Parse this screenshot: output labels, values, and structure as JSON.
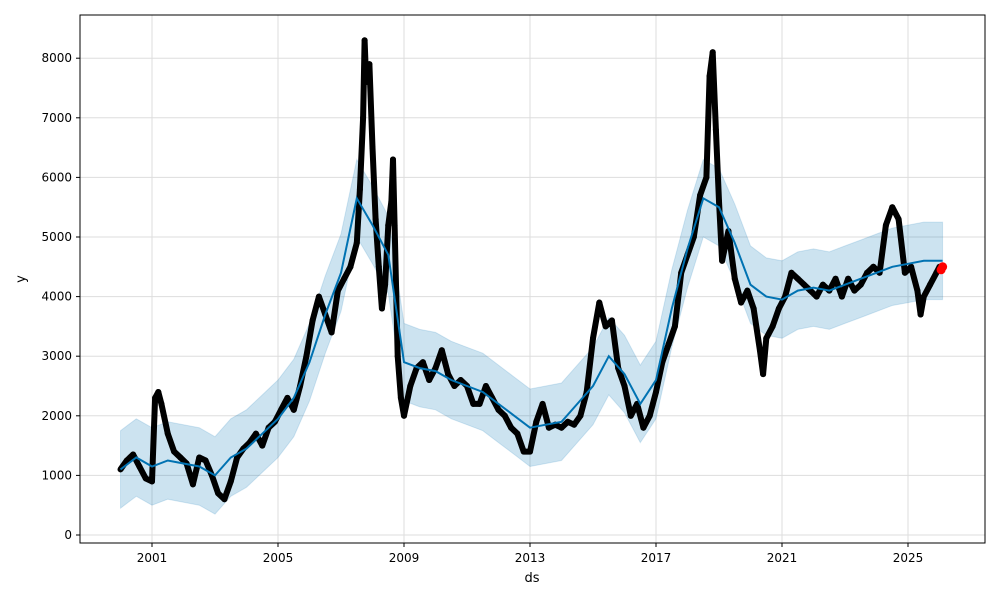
{
  "chart_data": {
    "type": "line",
    "title": "",
    "xlabel": "ds",
    "ylabel": "y",
    "xlim": [
      1998.1,
      2026.8
    ],
    "ylim": [
      -150,
      8700
    ],
    "grid": true,
    "x_ticks": [
      2001,
      2005,
      2009,
      2013,
      2017,
      2021,
      2025
    ],
    "y_ticks": [
      0,
      1000,
      2000,
      3000,
      4000,
      5000,
      6000,
      7000,
      8000
    ],
    "colors": {
      "forecast": "#0072B2",
      "band": "#0072B2",
      "observed": "#000000",
      "new_points": "#ff0000"
    },
    "forecast": [
      [
        2000.0,
        1100
      ],
      [
        2000.5,
        1300
      ],
      [
        2001,
        1150
      ],
      [
        2001.5,
        1250
      ],
      [
        2002,
        1200
      ],
      [
        2002.5,
        1150
      ],
      [
        2003,
        1000
      ],
      [
        2003.5,
        1300
      ],
      [
        2004,
        1450
      ],
      [
        2004.5,
        1700
      ],
      [
        2005,
        1950
      ],
      [
        2005.5,
        2300
      ],
      [
        2006,
        2900
      ],
      [
        2006.5,
        3700
      ],
      [
        2007,
        4400
      ],
      [
        2007.5,
        5650
      ],
      [
        2008,
        5200
      ],
      [
        2008.5,
        4700
      ],
      [
        2009,
        2900
      ],
      [
        2009.5,
        2800
      ],
      [
        2010,
        2750
      ],
      [
        2010.5,
        2600
      ],
      [
        2011,
        2500
      ],
      [
        2011.5,
        2400
      ],
      [
        2012,
        2200
      ],
      [
        2012.5,
        2000
      ],
      [
        2013,
        1800
      ],
      [
        2013.5,
        1850
      ],
      [
        2014,
        1900
      ],
      [
        2014.5,
        2200
      ],
      [
        2015,
        2500
      ],
      [
        2015.5,
        3000
      ],
      [
        2016,
        2700
      ],
      [
        2016.5,
        2200
      ],
      [
        2017,
        2600
      ],
      [
        2017.5,
        3800
      ],
      [
        2018,
        4800
      ],
      [
        2018.5,
        5650
      ],
      [
        2019,
        5500
      ],
      [
        2019.5,
        4900
      ],
      [
        2020,
        4200
      ],
      [
        2020.5,
        4000
      ],
      [
        2021,
        3950
      ],
      [
        2021.5,
        4100
      ],
      [
        2022,
        4150
      ],
      [
        2022.5,
        4100
      ],
      [
        2023,
        4200
      ],
      [
        2023.5,
        4300
      ],
      [
        2024,
        4400
      ],
      [
        2024.5,
        4500
      ],
      [
        2025,
        4550
      ],
      [
        2025.5,
        4600
      ],
      [
        2026.1,
        4600
      ]
    ],
    "band_halfwidth": 650,
    "observed": [
      [
        2000.0,
        1100
      ],
      [
        2000.2,
        1250
      ],
      [
        2000.4,
        1350
      ],
      [
        2000.6,
        1150
      ],
      [
        2000.8,
        950
      ],
      [
        2001.0,
        900
      ],
      [
        2001.1,
        2300
      ],
      [
        2001.2,
        2400
      ],
      [
        2001.3,
        2200
      ],
      [
        2001.5,
        1700
      ],
      [
        2001.7,
        1400
      ],
      [
        2001.9,
        1300
      ],
      [
        2002.1,
        1200
      ],
      [
        2002.3,
        850
      ],
      [
        2002.5,
        1300
      ],
      [
        2002.7,
        1250
      ],
      [
        2002.9,
        1000
      ],
      [
        2003.1,
        700
      ],
      [
        2003.3,
        600
      ],
      [
        2003.5,
        900
      ],
      [
        2003.7,
        1300
      ],
      [
        2003.9,
        1450
      ],
      [
        2004.1,
        1550
      ],
      [
        2004.3,
        1700
      ],
      [
        2004.5,
        1500
      ],
      [
        2004.7,
        1800
      ],
      [
        2004.9,
        1900
      ],
      [
        2005.1,
        2100
      ],
      [
        2005.3,
        2300
      ],
      [
        2005.5,
        2100
      ],
      [
        2005.7,
        2500
      ],
      [
        2005.9,
        3000
      ],
      [
        2006.1,
        3600
      ],
      [
        2006.3,
        4000
      ],
      [
        2006.5,
        3700
      ],
      [
        2006.7,
        3400
      ],
      [
        2006.9,
        4100
      ],
      [
        2007.1,
        4300
      ],
      [
        2007.3,
        4500
      ],
      [
        2007.5,
        4900
      ],
      [
        2007.6,
        5800
      ],
      [
        2007.7,
        7000
      ],
      [
        2007.75,
        8300
      ],
      [
        2007.8,
        7600
      ],
      [
        2007.9,
        7900
      ],
      [
        2008.0,
        6500
      ],
      [
        2008.1,
        5300
      ],
      [
        2008.2,
        4500
      ],
      [
        2008.3,
        3800
      ],
      [
        2008.4,
        4200
      ],
      [
        2008.5,
        5200
      ],
      [
        2008.6,
        5600
      ],
      [
        2008.65,
        6300
      ],
      [
        2008.7,
        5200
      ],
      [
        2008.8,
        3000
      ],
      [
        2008.9,
        2300
      ],
      [
        2009.0,
        2000
      ],
      [
        2009.2,
        2500
      ],
      [
        2009.4,
        2800
      ],
      [
        2009.6,
        2900
      ],
      [
        2009.8,
        2600
      ],
      [
        2010.0,
        2800
      ],
      [
        2010.2,
        3100
      ],
      [
        2010.4,
        2700
      ],
      [
        2010.6,
        2500
      ],
      [
        2010.8,
        2600
      ],
      [
        2011.0,
        2500
      ],
      [
        2011.2,
        2200
      ],
      [
        2011.4,
        2200
      ],
      [
        2011.6,
        2500
      ],
      [
        2011.8,
        2300
      ],
      [
        2012.0,
        2100
      ],
      [
        2012.2,
        2000
      ],
      [
        2012.4,
        1800
      ],
      [
        2012.6,
        1700
      ],
      [
        2012.8,
        1400
      ],
      [
        2013.0,
        1400
      ],
      [
        2013.2,
        1900
      ],
      [
        2013.4,
        2200
      ],
      [
        2013.6,
        1800
      ],
      [
        2013.8,
        1850
      ],
      [
        2014.0,
        1800
      ],
      [
        2014.2,
        1900
      ],
      [
        2014.4,
        1850
      ],
      [
        2014.6,
        2000
      ],
      [
        2014.8,
        2400
      ],
      [
        2015.0,
        3300
      ],
      [
        2015.2,
        3900
      ],
      [
        2015.4,
        3500
      ],
      [
        2015.6,
        3600
      ],
      [
        2015.8,
        2800
      ],
      [
        2016.0,
        2500
      ],
      [
        2016.2,
        2000
      ],
      [
        2016.4,
        2200
      ],
      [
        2016.6,
        1800
      ],
      [
        2016.8,
        2000
      ],
      [
        2017.0,
        2400
      ],
      [
        2017.2,
        2900
      ],
      [
        2017.4,
        3200
      ],
      [
        2017.6,
        3500
      ],
      [
        2017.8,
        4400
      ],
      [
        2018.0,
        4700
      ],
      [
        2018.2,
        5000
      ],
      [
        2018.4,
        5700
      ],
      [
        2018.6,
        6000
      ],
      [
        2018.7,
        7700
      ],
      [
        2018.8,
        8100
      ],
      [
        2018.9,
        6800
      ],
      [
        2019.0,
        5600
      ],
      [
        2019.1,
        4600
      ],
      [
        2019.3,
        5100
      ],
      [
        2019.5,
        4300
      ],
      [
        2019.7,
        3900
      ],
      [
        2019.9,
        4100
      ],
      [
        2020.1,
        3800
      ],
      [
        2020.3,
        3100
      ],
      [
        2020.4,
        2700
      ],
      [
        2020.5,
        3300
      ],
      [
        2020.7,
        3500
      ],
      [
        2020.9,
        3800
      ],
      [
        2021.1,
        4000
      ],
      [
        2021.3,
        4400
      ],
      [
        2021.5,
        4300
      ],
      [
        2021.7,
        4200
      ],
      [
        2021.9,
        4100
      ],
      [
        2022.1,
        4000
      ],
      [
        2022.3,
        4200
      ],
      [
        2022.5,
        4100
      ],
      [
        2022.7,
        4300
      ],
      [
        2022.9,
        4000
      ],
      [
        2023.1,
        4300
      ],
      [
        2023.3,
        4100
      ],
      [
        2023.5,
        4200
      ],
      [
        2023.7,
        4400
      ],
      [
        2023.9,
        4500
      ],
      [
        2024.1,
        4400
      ],
      [
        2024.3,
        5200
      ],
      [
        2024.5,
        5500
      ],
      [
        2024.7,
        5300
      ],
      [
        2024.9,
        4400
      ],
      [
        2025.1,
        4500
      ],
      [
        2025.3,
        4100
      ],
      [
        2025.4,
        3700
      ],
      [
        2025.5,
        4000
      ],
      [
        2025.7,
        4200
      ],
      [
        2025.9,
        4400
      ],
      [
        2026.0,
        4500
      ]
    ],
    "new_points": [
      [
        2026.05,
        4450
      ],
      [
        2026.1,
        4500
      ]
    ]
  }
}
